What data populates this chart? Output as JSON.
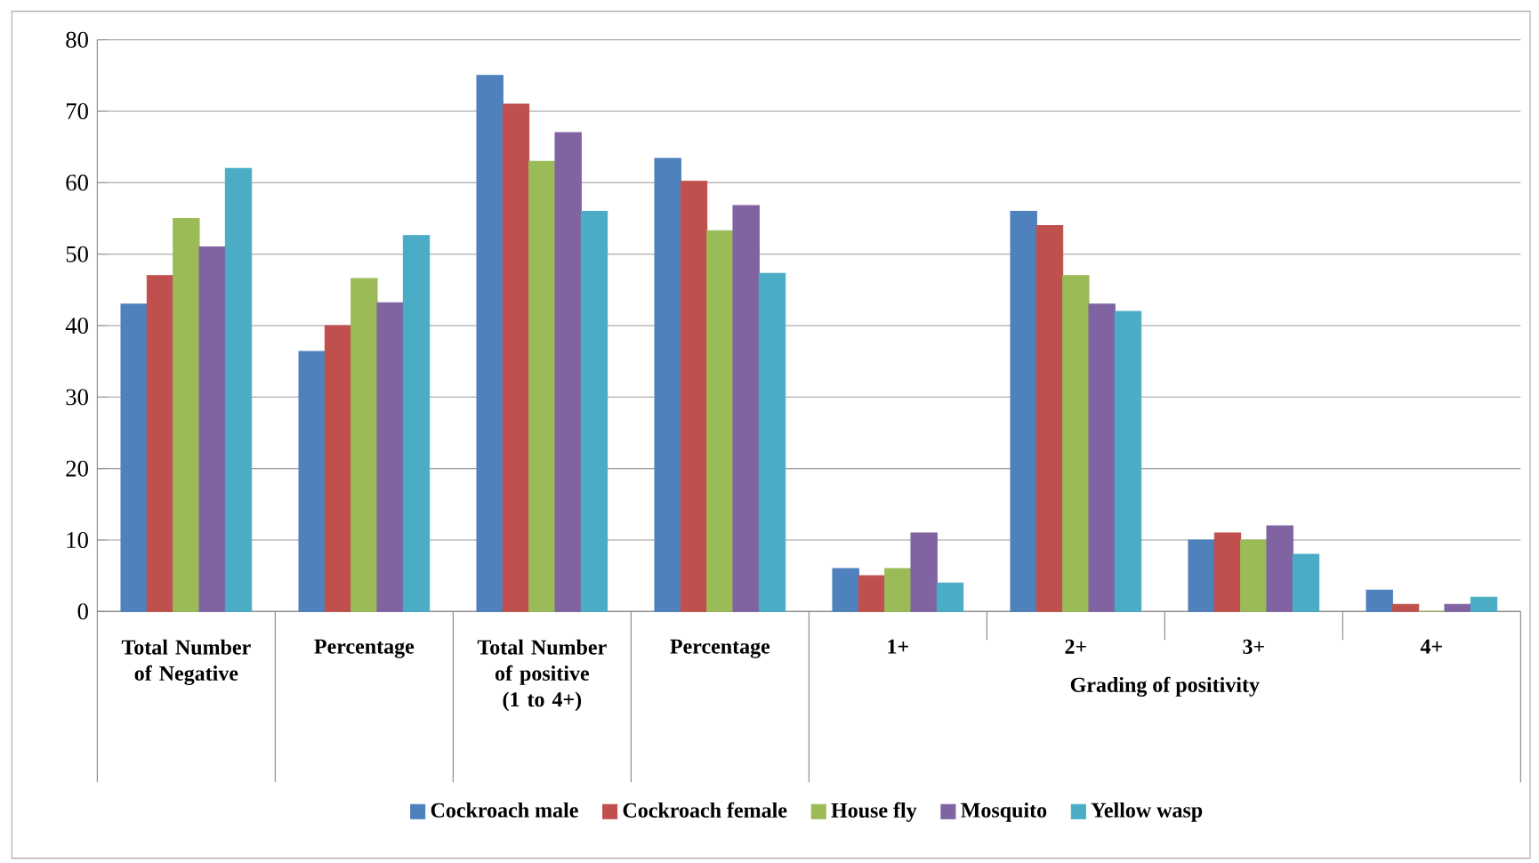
{
  "chart_data": {
    "type": "bar",
    "categories": [
      "Total Number of Negative",
      "Percentage",
      "Total Number of positive (1 to 4+)",
      "Percentage",
      "1+",
      "2+",
      "3+",
      "4+"
    ],
    "series": [
      {
        "name": "Cockroach male",
        "color": "#4f81bd",
        "values": [
          43,
          36.4,
          75,
          63.4,
          6,
          56,
          10,
          3
        ]
      },
      {
        "name": "Cockroach female",
        "color": "#c0504d",
        "values": [
          47,
          40,
          71,
          60.2,
          5,
          54,
          11,
          1
        ]
      },
      {
        "name": "House fly",
        "color": "#9bbb59",
        "values": [
          55,
          46.6,
          63,
          53.3,
          6,
          47,
          10,
          0
        ]
      },
      {
        "name": "Mosquito",
        "color": "#8064a2",
        "values": [
          51,
          43.2,
          67,
          56.8,
          11,
          43,
          12,
          1
        ]
      },
      {
        "name": "Yellow wasp",
        "color": "#4bacc6",
        "values": [
          62,
          52.6,
          56,
          47.3,
          4,
          42,
          8,
          2
        ]
      }
    ],
    "annotations": [
      "Grading of positivity"
    ],
    "ylim": [
      0,
      80
    ],
    "yticks": [
      0,
      10,
      20,
      30,
      40,
      50,
      60,
      70,
      80
    ],
    "grid": "y",
    "legend": "bottom"
  }
}
